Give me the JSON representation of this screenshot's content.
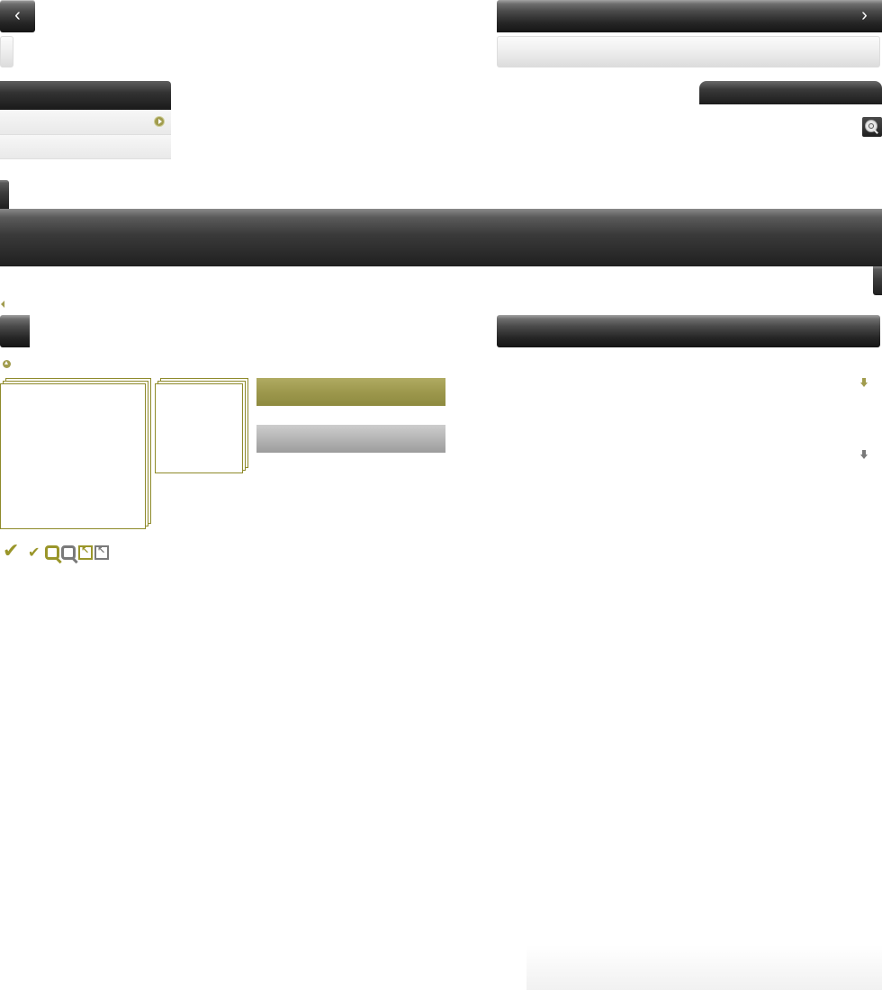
{
  "top_nav": {
    "prev_label": "‹",
    "next_label": "›"
  },
  "sidebar_menu": {
    "header_label": "",
    "items": [
      {
        "label": ""
      },
      {
        "label": ""
      }
    ]
  },
  "search": {
    "placeholder": ""
  },
  "main_banner": {
    "title": ""
  },
  "panels": {
    "left_title": "",
    "right_title": ""
  },
  "buttons": {
    "primary_label": "",
    "secondary_label": ""
  },
  "icons": {
    "play": "play-circle-icon",
    "search": "magnifier-icon",
    "check": "checkmark-icon",
    "zoom": "zoom-icon",
    "collapse": "collapse-box-icon",
    "down": "arrow-down-icon",
    "up": "arrow-up-circle-icon"
  },
  "colors": {
    "accent_olive": "#9d984d",
    "dark": "#262626",
    "grey": "#b5b5b5"
  }
}
